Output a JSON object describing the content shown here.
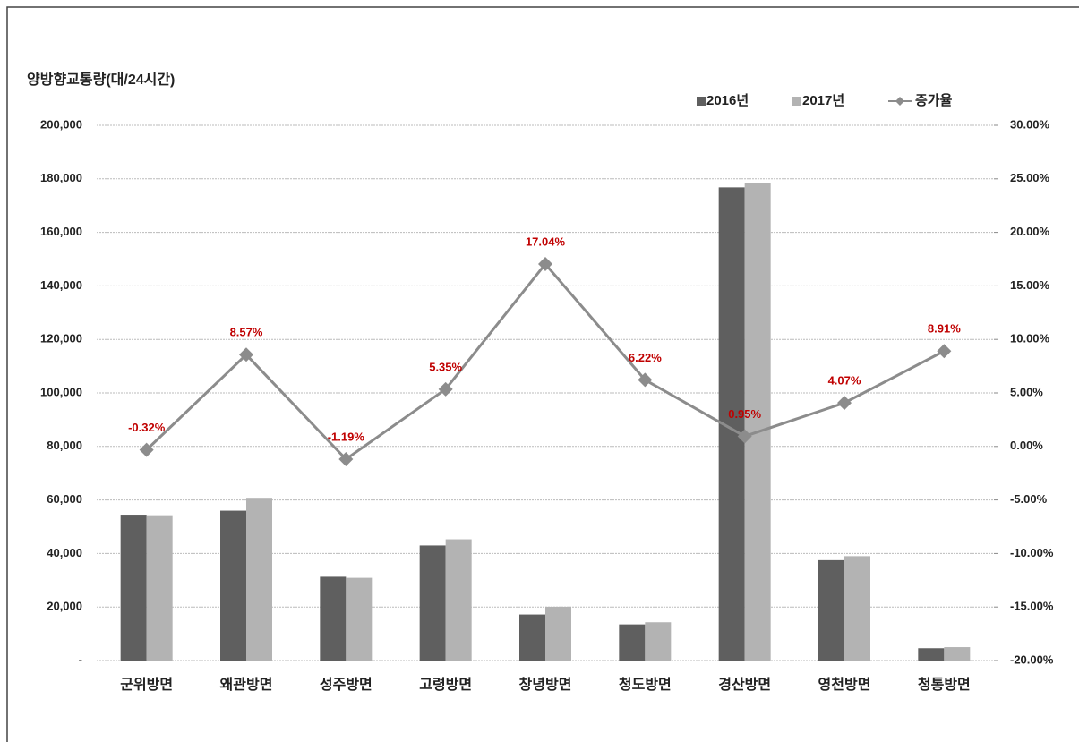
{
  "chart_data": {
    "type": "bar-line",
    "y_axis_title": "양방향교통량(대/24시간)",
    "categories": [
      "군위방면",
      "왜관방면",
      "성주방면",
      "고령방면",
      "창녕방면",
      "청도방면",
      "경산방면",
      "영천방면",
      "청통방면"
    ],
    "series": [
      {
        "name": "2016년",
        "type": "bar",
        "color": "#5f5f5f",
        "values": [
          54500,
          56000,
          31300,
          43000,
          17200,
          13500,
          176800,
          37500,
          4600
        ]
      },
      {
        "name": "2017년",
        "type": "bar",
        "color": "#b3b3b3",
        "values": [
          54300,
          60800,
          30900,
          45300,
          20100,
          14300,
          178500,
          39000,
          5000
        ]
      },
      {
        "name": "증가율",
        "type": "line",
        "axis": "y2",
        "color": "#8c8c8c",
        "values": [
          -0.32,
          8.57,
          -1.19,
          5.35,
          17.04,
          6.22,
          0.95,
          4.07,
          8.91
        ],
        "value_labels": [
          "-0.32%",
          "8.57%",
          "-1.19%",
          "5.35%",
          "17.04%",
          "6.22%",
          "0.95%",
          "4.07%",
          "8.91%"
        ]
      }
    ],
    "ylim": [
      0,
      200000
    ],
    "yticks": [
      {
        "value": 0,
        "label": "-"
      },
      {
        "value": 20000,
        "label": "20,000"
      },
      {
        "value": 40000,
        "label": "40,000"
      },
      {
        "value": 60000,
        "label": "60,000"
      },
      {
        "value": 80000,
        "label": "80,000"
      },
      {
        "value": 100000,
        "label": "100,000"
      },
      {
        "value": 120000,
        "label": "120,000"
      },
      {
        "value": 140000,
        "label": "140,000"
      },
      {
        "value": 160000,
        "label": "160,000"
      },
      {
        "value": 180000,
        "label": "180,000"
      },
      {
        "value": 200000,
        "label": "200,000"
      }
    ],
    "y2lim": [
      -20,
      30
    ],
    "y2ticks": [
      {
        "value": -20,
        "label": "-20.00%"
      },
      {
        "value": -15,
        "label": "-15.00%"
      },
      {
        "value": -10,
        "label": "-10.00%"
      },
      {
        "value": -5,
        "label": "-5.00%"
      },
      {
        "value": 0,
        "label": "0.00%"
      },
      {
        "value": 5,
        "label": "5.00%"
      },
      {
        "value": 10,
        "label": "10.00%"
      },
      {
        "value": 15,
        "label": "15.00%"
      },
      {
        "value": 20,
        "label": "20.00%"
      },
      {
        "value": 25,
        "label": "25.00%"
      },
      {
        "value": 30,
        "label": "30.00%"
      }
    ],
    "grid": true,
    "legend": "top-right"
  }
}
